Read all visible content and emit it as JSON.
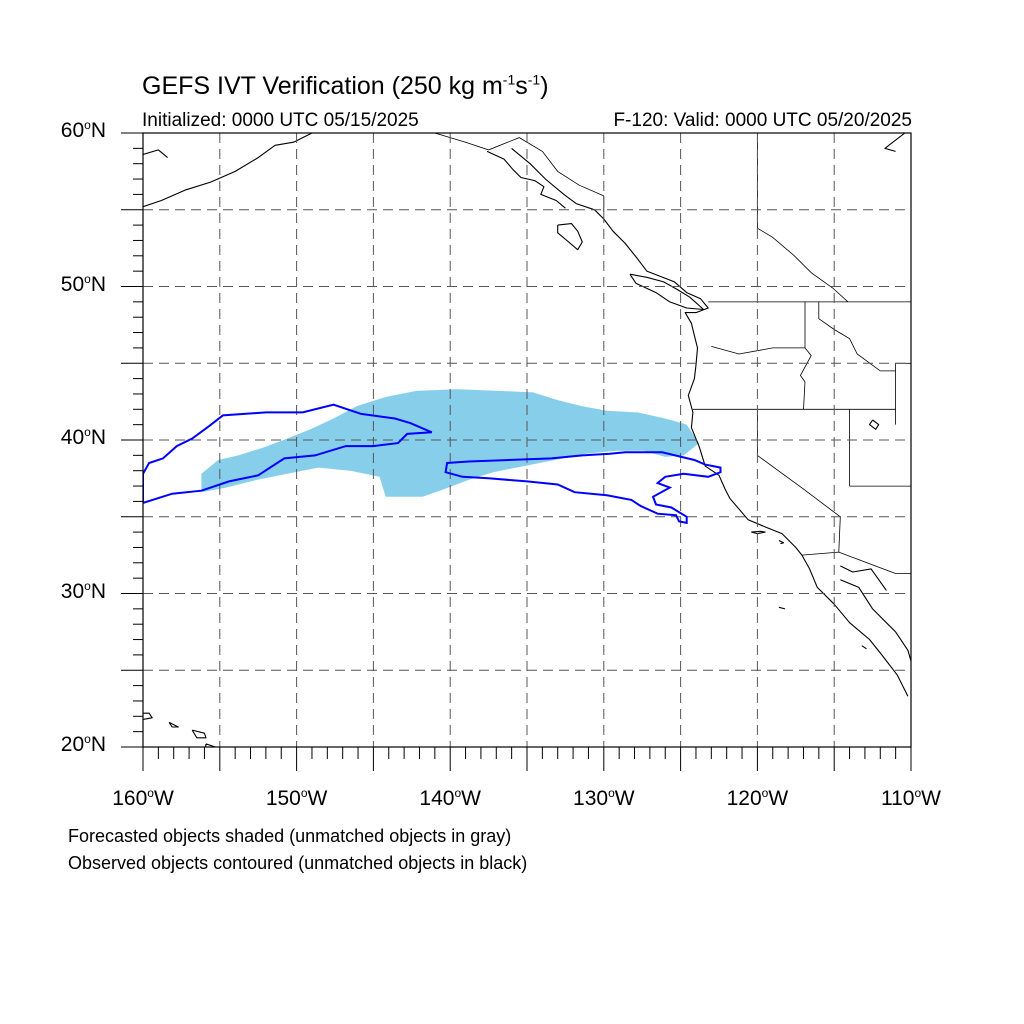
{
  "title": {
    "text": "GEFS IVT Verification (250 kg m",
    "exp1": "-1",
    "mid": "s",
    "exp2": "-1",
    "end": ")"
  },
  "initialized": "Initialized: 0000 UTC 05/15/2025",
  "valid": "F-120: Valid: 0000 UTC 05/20/2025",
  "map": {
    "lon_range": [
      -160,
      -110
    ],
    "lat_range": [
      20,
      60
    ],
    "lat_labels": [
      {
        "v": 60,
        "num": "60",
        "hemi": "N"
      },
      {
        "v": 50,
        "num": "50",
        "hemi": "N"
      },
      {
        "v": 40,
        "num": "40",
        "hemi": "N"
      },
      {
        "v": 30,
        "num": "30",
        "hemi": "N"
      },
      {
        "v": 20,
        "num": "20",
        "hemi": "N"
      }
    ],
    "lon_labels": [
      {
        "v": -160,
        "num": "160",
        "hemi": "W"
      },
      {
        "v": -150,
        "num": "150",
        "hemi": "W"
      },
      {
        "v": -140,
        "num": "140",
        "hemi": "W"
      },
      {
        "v": -130,
        "num": "130",
        "hemi": "W"
      },
      {
        "v": -120,
        "num": "120",
        "hemi": "W"
      },
      {
        "v": -110,
        "num": "110",
        "hemi": "W"
      }
    ],
    "grid_lons": [
      -155,
      -150,
      -145,
      -140,
      -135,
      -130,
      -125,
      -120,
      -115
    ],
    "grid_lats": [
      25,
      30,
      35,
      40,
      45,
      50,
      55
    ],
    "forecast_color": "#87CEEB",
    "observed_color": "#0000FF",
    "coast_color": "#000000",
    "forecast_object": [
      [
        -156.2,
        36.6
      ],
      [
        -156.2,
        37.8
      ],
      [
        -155.1,
        38.7
      ],
      [
        -153.8,
        39.0
      ],
      [
        -152.2,
        39.5
      ],
      [
        -150.6,
        40.1
      ],
      [
        -149.1,
        40.7
      ],
      [
        -147.6,
        41.4
      ],
      [
        -146.1,
        42.2
      ],
      [
        -144.2,
        42.8
      ],
      [
        -142.2,
        43.2
      ],
      [
        -139.6,
        43.3
      ],
      [
        -136.8,
        43.2
      ],
      [
        -134.6,
        43.1
      ],
      [
        -133.0,
        42.6
      ],
      [
        -131.4,
        42.2
      ],
      [
        -129.8,
        41.9
      ],
      [
        -127.8,
        41.8
      ],
      [
        -126.0,
        41.4
      ],
      [
        -124.6,
        41.0
      ],
      [
        -123.8,
        39.8
      ],
      [
        -124.8,
        39.0
      ],
      [
        -126.0,
        38.9
      ],
      [
        -127.4,
        39.3
      ],
      [
        -129.2,
        39.3
      ],
      [
        -131.2,
        39.1
      ],
      [
        -133.2,
        38.7
      ],
      [
        -135.2,
        38.3
      ],
      [
        -137.2,
        37.9
      ],
      [
        -138.8,
        37.4
      ],
      [
        -140.4,
        36.8
      ],
      [
        -141.8,
        36.3
      ],
      [
        -144.2,
        36.3
      ],
      [
        -144.6,
        37.6
      ],
      [
        -146.5,
        38.0
      ],
      [
        -148.6,
        38.2
      ],
      [
        -150.6,
        37.8
      ],
      [
        -152.6,
        37.4
      ],
      [
        -154.6,
        36.9
      ]
    ],
    "observed_objects": [
      [
        [
          -160.0,
          37.8
        ],
        [
          -159.6,
          38.5
        ],
        [
          -158.7,
          38.8
        ],
        [
          -157.8,
          39.6
        ],
        [
          -156.8,
          40.1
        ],
        [
          -155.7,
          40.9
        ],
        [
          -154.8,
          41.6
        ],
        [
          -152.0,
          41.8
        ],
        [
          -149.6,
          41.8
        ],
        [
          -147.6,
          42.3
        ],
        [
          -146.4,
          41.9
        ],
        [
          -145.8,
          41.7
        ],
        [
          -143.6,
          41.4
        ],
        [
          -142.6,
          41.1
        ],
        [
          -141.2,
          40.5
        ],
        [
          -142.8,
          40.4
        ],
        [
          -143.4,
          39.8
        ],
        [
          -145.0,
          39.6
        ],
        [
          -146.8,
          39.6
        ],
        [
          -148.8,
          39.0
        ],
        [
          -150.8,
          38.8
        ],
        [
          -152.5,
          37.7
        ],
        [
          -154.4,
          37.3
        ],
        [
          -156.2,
          36.7
        ],
        [
          -158.1,
          36.5
        ],
        [
          -160.0,
          35.9
        ]
      ],
      [
        [
          -140.2,
          38.5
        ],
        [
          -138.8,
          38.6
        ],
        [
          -133.4,
          38.8
        ],
        [
          -131.4,
          39.0
        ],
        [
          -129.6,
          39.1
        ],
        [
          -128.6,
          39.2
        ],
        [
          -126.2,
          39.2
        ],
        [
          -124.1,
          38.7
        ],
        [
          -123.4,
          38.4
        ],
        [
          -122.4,
          38.2
        ],
        [
          -122.4,
          37.9
        ],
        [
          -123.2,
          37.6
        ],
        [
          -124.8,
          37.8
        ],
        [
          -126.0,
          37.6
        ],
        [
          -126.5,
          37.2
        ],
        [
          -125.7,
          36.9
        ],
        [
          -126.8,
          36.3
        ],
        [
          -126.6,
          35.8
        ],
        [
          -125.6,
          35.6
        ],
        [
          -124.6,
          35.0
        ],
        [
          -124.6,
          34.6
        ],
        [
          -125.1,
          34.7
        ],
        [
          -125.3,
          35.1
        ],
        [
          -126.5,
          35.2
        ],
        [
          -127.6,
          35.7
        ],
        [
          -128.2,
          36.1
        ],
        [
          -129.8,
          36.4
        ],
        [
          -131.9,
          36.6
        ],
        [
          -133.0,
          37.1
        ],
        [
          -135.0,
          37.3
        ],
        [
          -137.4,
          37.5
        ],
        [
          -139.2,
          37.6
        ],
        [
          -140.3,
          37.9
        ]
      ]
    ],
    "coastlines": [
      [
        [
          -136.0,
          59.0
        ],
        [
          -134.8,
          58.0
        ],
        [
          -133.8,
          57.0
        ],
        [
          -132.6,
          56.0
        ],
        [
          -131.8,
          55.4
        ],
        [
          -130.6,
          55.0
        ],
        [
          -130.0,
          54.4
        ],
        [
          -129.4,
          53.6
        ],
        [
          -128.6,
          52.8
        ],
        [
          -127.8,
          51.8
        ],
        [
          -127.2,
          51.0
        ],
        [
          -125.4,
          50.3
        ],
        [
          -124.6,
          49.6
        ],
        [
          -123.7,
          49.2
        ],
        [
          -123.2,
          48.6
        ],
        [
          -124.0,
          48.3
        ],
        [
          -124.7,
          48.3
        ],
        [
          -124.3,
          47.6
        ],
        [
          -124.1,
          46.8
        ],
        [
          -123.9,
          46.0
        ],
        [
          -124.0,
          44.9
        ],
        [
          -124.1,
          44.0
        ],
        [
          -124.5,
          42.9
        ],
        [
          -124.2,
          41.8
        ],
        [
          -124.3,
          40.8
        ],
        [
          -123.8,
          39.6
        ],
        [
          -123.4,
          38.3
        ],
        [
          -122.5,
          37.7
        ],
        [
          -122.1,
          36.8
        ],
        [
          -121.8,
          36.2
        ],
        [
          -120.6,
          34.8
        ],
        [
          -119.4,
          34.3
        ],
        [
          -118.4,
          33.9
        ],
        [
          -117.5,
          33.0
        ],
        [
          -117.1,
          32.5
        ],
        [
          -116.6,
          31.6
        ],
        [
          -116.1,
          30.4
        ],
        [
          -115.0,
          29.3
        ],
        [
          -114.0,
          28.1
        ],
        [
          -112.7,
          27.0
        ],
        [
          -111.9,
          26.0
        ],
        [
          -110.9,
          24.7
        ],
        [
          -110.2,
          23.3
        ]
      ],
      [
        [
          -114.6,
          30.9
        ],
        [
          -113.4,
          30.4
        ],
        [
          -112.5,
          29.0
        ],
        [
          -111.0,
          27.5
        ],
        [
          -110.2,
          26.3
        ],
        [
          -110.0,
          25.6
        ]
      ],
      [
        [
          -114.6,
          31.8
        ],
        [
          -113.8,
          31.4
        ],
        [
          -112.6,
          31.6
        ],
        [
          -111.6,
          30.2
        ]
      ],
      [
        [
          -149.0,
          60.0
        ],
        [
          -150.2,
          59.4
        ],
        [
          -151.4,
          59.2
        ],
        [
          -152.5,
          58.4
        ],
        [
          -154.0,
          57.5
        ],
        [
          -155.6,
          56.8
        ],
        [
          -157.2,
          56.3
        ],
        [
          -158.8,
          55.6
        ],
        [
          -160.0,
          55.2
        ]
      ],
      [
        [
          -160.0,
          58.6
        ],
        [
          -159.0,
          58.9
        ],
        [
          -158.4,
          58.4
        ]
      ],
      [
        [
          -147.0,
          60.0
        ],
        [
          -146.0,
          60.4
        ]
      ],
      [
        [
          -137.6,
          58.8
        ],
        [
          -136.5,
          58.3
        ],
        [
          -135.9,
          57.6
        ],
        [
          -135.4,
          57.1
        ],
        [
          -134.5,
          56.9
        ],
        [
          -133.9,
          56.5
        ],
        [
          -134.1,
          56.0
        ],
        [
          -133.1,
          55.6
        ],
        [
          -132.5,
          55.1
        ]
      ],
      [
        [
          -133.0,
          54.0
        ],
        [
          -132.1,
          54.1
        ],
        [
          -131.7,
          53.6
        ],
        [
          -131.4,
          52.9
        ],
        [
          -131.7,
          52.4
        ],
        [
          -132.4,
          53.0
        ],
        [
          -133.0,
          53.5
        ],
        [
          -133.0,
          54.0
        ]
      ],
      [
        [
          -128.3,
          50.8
        ],
        [
          -127.2,
          50.6
        ],
        [
          -126.1,
          50.3
        ],
        [
          -125.2,
          49.8
        ],
        [
          -124.4,
          49.3
        ],
        [
          -123.5,
          48.5
        ],
        [
          -124.6,
          48.6
        ],
        [
          -125.7,
          49.0
        ],
        [
          -126.6,
          49.6
        ],
        [
          -127.9,
          50.2
        ],
        [
          -128.3,
          50.8
        ]
      ],
      [
        [
          -110.4,
          60.0
        ],
        [
          -111.7,
          59.0
        ],
        [
          -111.0,
          58.8
        ]
      ],
      [
        [
          -161.0,
          22.2
        ],
        [
          -159.6,
          22.2
        ],
        [
          -159.4,
          21.9
        ],
        [
          -160.0,
          21.8
        ]
      ],
      [
        [
          -158.3,
          21.6
        ],
        [
          -157.7,
          21.3
        ],
        [
          -158.1,
          21.3
        ],
        [
          -158.3,
          21.6
        ]
      ],
      [
        [
          -156.8,
          21.1
        ],
        [
          -156.0,
          20.9
        ],
        [
          -155.9,
          20.6
        ],
        [
          -156.5,
          20.6
        ],
        [
          -156.8,
          21.1
        ]
      ],
      [
        [
          -155.9,
          20.2
        ],
        [
          -155.0,
          19.9
        ],
        [
          -154.8,
          19.4
        ],
        [
          -155.7,
          18.9
        ],
        [
          -156.0,
          19.6
        ],
        [
          -155.9,
          20.2
        ]
      ],
      [
        [
          -120.4,
          34.0
        ],
        [
          -119.8,
          34.05
        ],
        [
          -119.5,
          34.0
        ],
        [
          -120.0,
          33.9
        ],
        [
          -120.4,
          34.0
        ]
      ],
      [
        [
          -118.6,
          33.45
        ],
        [
          -118.3,
          33.3
        ],
        [
          -118.5,
          33.25
        ]
      ],
      [
        [
          -118.6,
          29.1
        ],
        [
          -118.2,
          29.0
        ]
      ],
      [
        [
          -113.2,
          26.6
        ],
        [
          -112.9,
          26.4
        ]
      ],
      [
        [
          -112.5,
          41.3
        ],
        [
          -112.1,
          41.0
        ],
        [
          -112.3,
          40.7
        ],
        [
          -112.7,
          41.0
        ],
        [
          -112.5,
          41.3
        ]
      ]
    ],
    "borders": [
      [
        [
          -141.0,
          60.0
        ],
        [
          -139.0,
          59.4
        ],
        [
          -137.5,
          58.9
        ],
        [
          -135.5,
          59.7
        ],
        [
          -134.0,
          58.8
        ],
        [
          -133.0,
          57.5
        ],
        [
          -131.6,
          56.6
        ],
        [
          -130.0,
          55.9
        ],
        [
          -130.0,
          54.8
        ]
      ],
      [
        [
          -123.2,
          49.0
        ],
        [
          -110.0,
          49.0
        ]
      ],
      [
        [
          -123.0,
          46.1
        ],
        [
          -121.2,
          45.6
        ],
        [
          -119.0,
          46.0
        ],
        [
          -116.9,
          46.0
        ]
      ],
      [
        [
          -124.2,
          42.0
        ],
        [
          -111.0,
          42.0
        ]
      ],
      [
        [
          -116.9,
          49.0
        ],
        [
          -116.9,
          46.0
        ],
        [
          -116.5,
          45.5
        ],
        [
          -117.2,
          44.2
        ],
        [
          -116.9,
          43.8
        ],
        [
          -117.0,
          42.0
        ]
      ],
      [
        [
          -120.0,
          42.0
        ],
        [
          -120.0,
          39.0
        ],
        [
          -117.0,
          36.8
        ],
        [
          -114.6,
          35.0
        ],
        [
          -114.7,
          32.7
        ]
      ],
      [
        [
          -114.0,
          42.0
        ],
        [
          -114.0,
          37.0
        ]
      ],
      [
        [
          -114.0,
          37.0
        ],
        [
          -110.0,
          37.0
        ]
      ],
      [
        [
          -117.1,
          32.5
        ],
        [
          -114.7,
          32.7
        ],
        [
          -111.0,
          31.3
        ],
        [
          -110.0,
          31.3
        ]
      ],
      [
        [
          -111.0,
          45.0
        ],
        [
          -110.0,
          45.0
        ]
      ],
      [
        [
          -111.0,
          45.0
        ],
        [
          -111.0,
          41.0
        ]
      ],
      [
        [
          -116.0,
          49.0
        ],
        [
          -116.0,
          47.9
        ],
        [
          -115.0,
          47.2
        ],
        [
          -114.0,
          46.6
        ],
        [
          -113.5,
          45.6
        ],
        [
          -112.0,
          44.5
        ],
        [
          -111.0,
          44.5
        ]
      ],
      [
        [
          -120.0,
          60.0
        ],
        [
          -120.0,
          53.8
        ],
        [
          -119.0,
          53.2
        ],
        [
          -117.6,
          52.0
        ],
        [
          -116.5,
          50.9
        ],
        [
          -115.1,
          49.9
        ],
        [
          -114.1,
          49.0
        ]
      ]
    ]
  },
  "notes": {
    "line1": "Forecasted objects shaded (unmatched objects in gray)",
    "line2": "Observed objects contoured (unmatched objects in black)"
  }
}
